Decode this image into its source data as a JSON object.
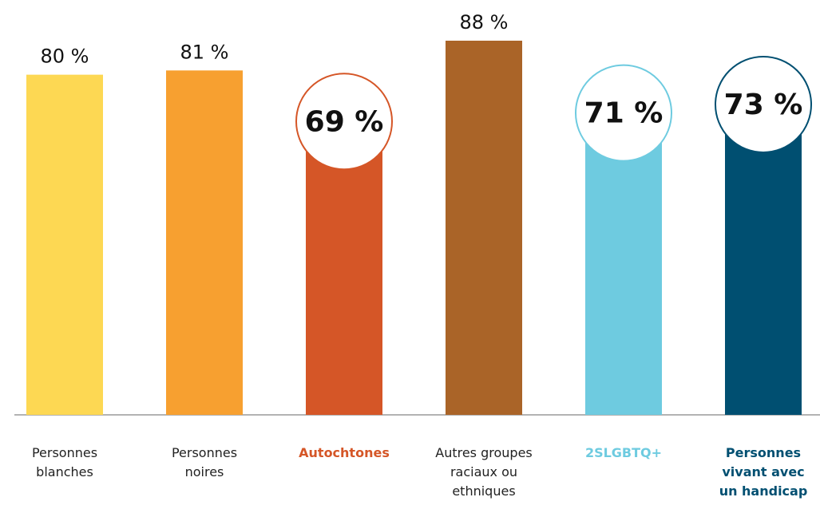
{
  "chart_data": {
    "type": "bar",
    "categories": [
      "Personnes blanches",
      "Personnes noires",
      "Autochtones",
      "Autres groupes raciaux ou ethniques",
      "2SLGBTQ+",
      "Personnes vivant avec un handicap"
    ],
    "values": [
      80,
      81,
      69,
      88,
      71,
      73
    ],
    "value_labels": [
      "80 %",
      "81 %",
      "69 %",
      "88 %",
      "71 %",
      "73 %"
    ],
    "colors": [
      "#fdd853",
      "#f7a030",
      "#d55627",
      "#aa6428",
      "#6ecbe0",
      "#004f71"
    ],
    "highlight": [
      false,
      false,
      true,
      false,
      true,
      true
    ]
  }
}
